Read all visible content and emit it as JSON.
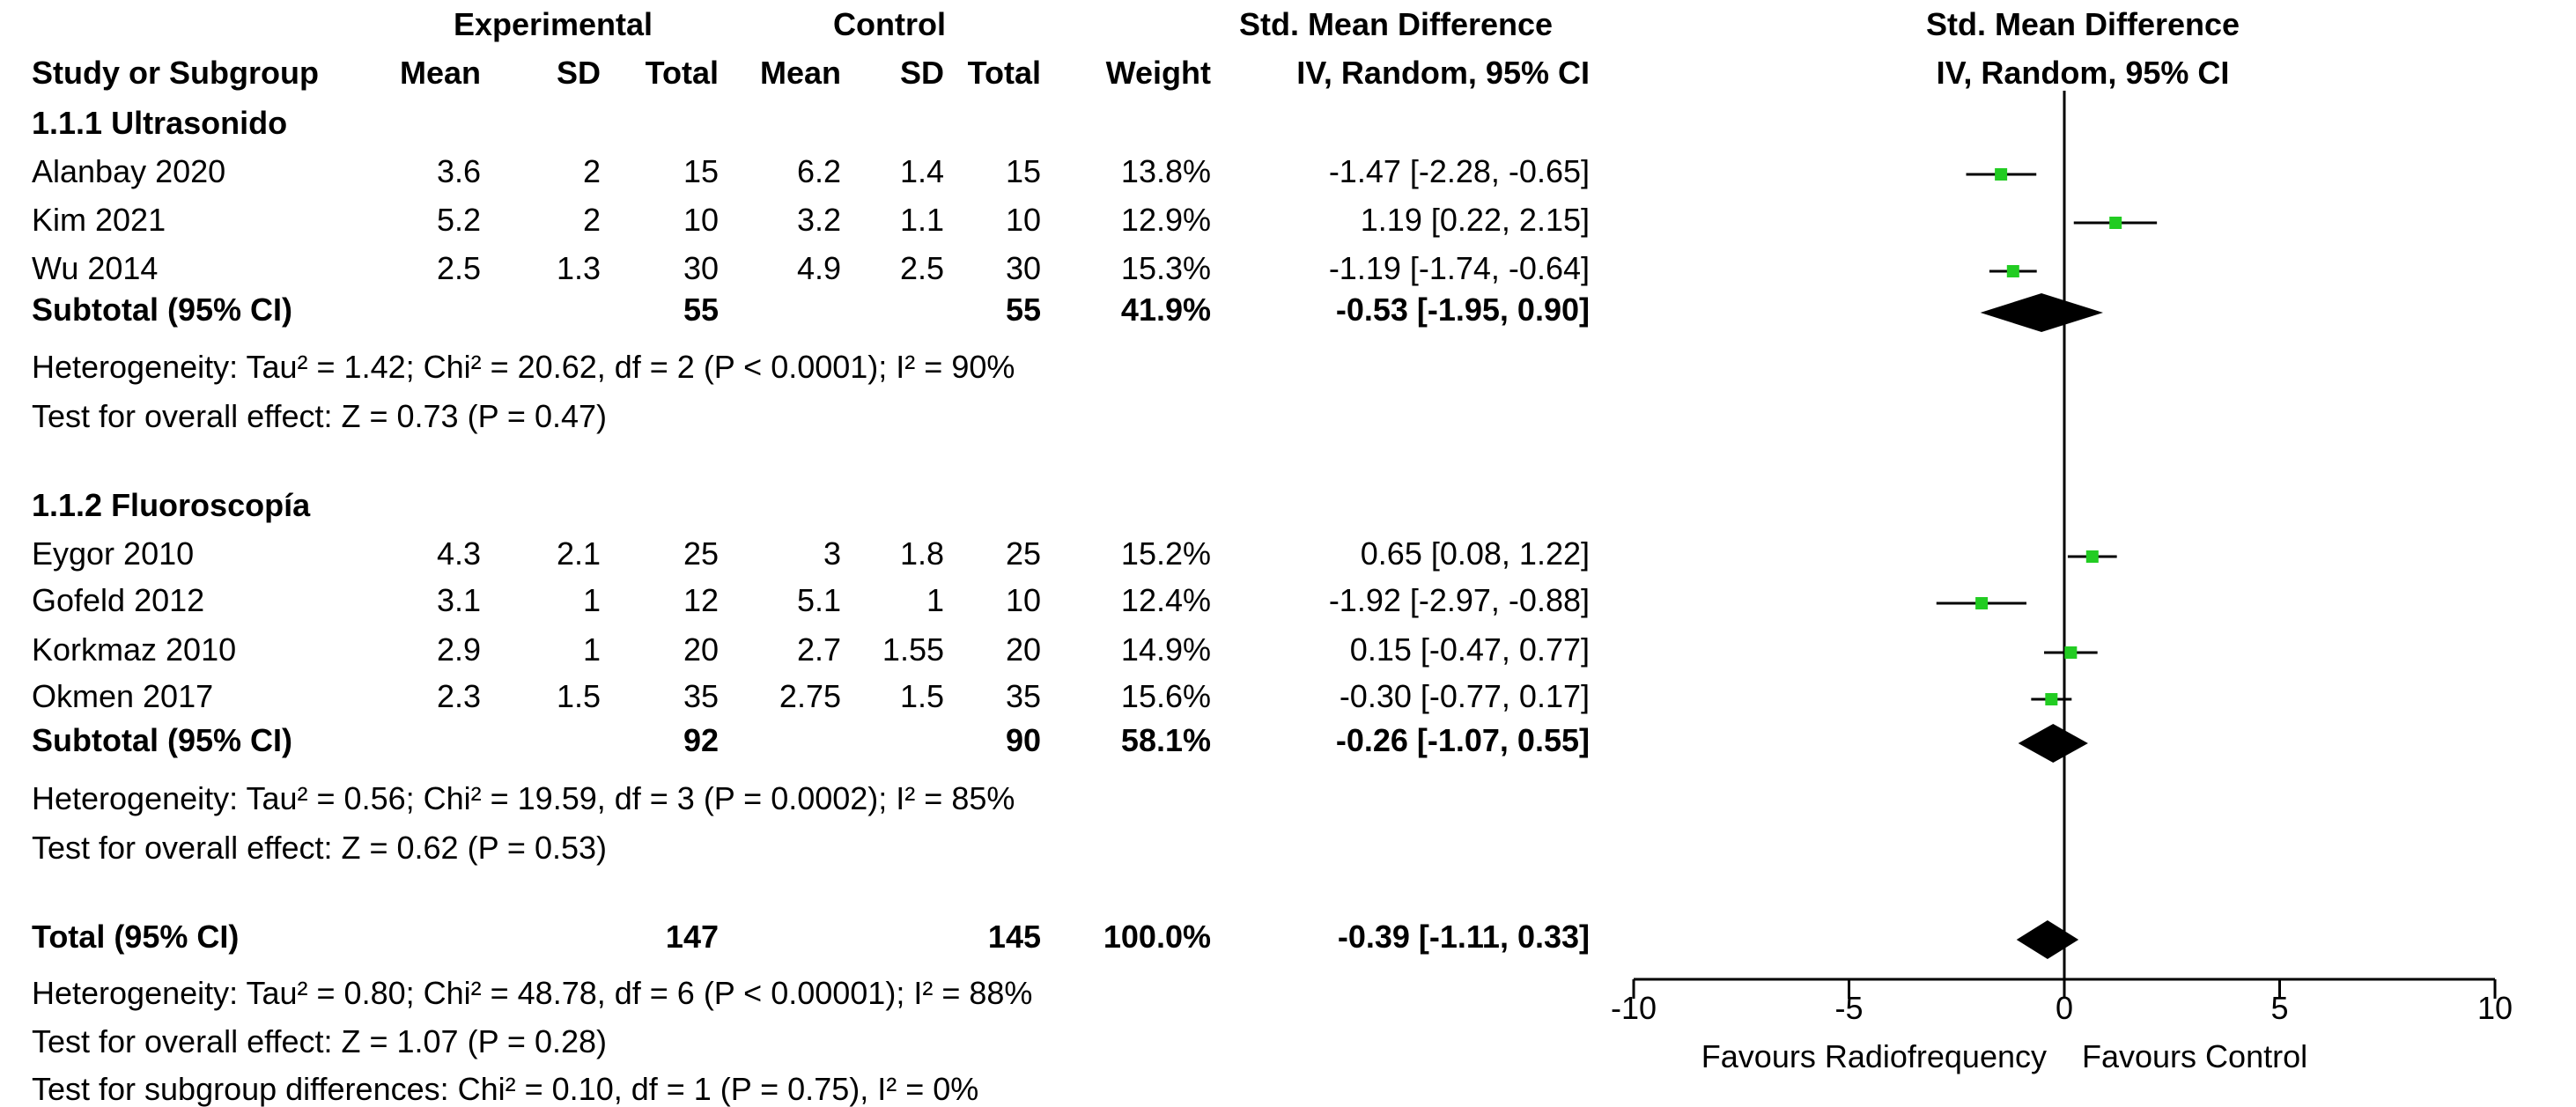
{
  "header": {
    "experimental": "Experimental",
    "control": "Control",
    "smd_title": "Std. Mean Difference",
    "study_or_subgroup": "Study or Subgroup",
    "mean": "Mean",
    "sd": "SD",
    "total": "Total",
    "weight": "Weight",
    "method": "IV, Random, 95% CI",
    "plot_title": "Std. Mean Difference",
    "plot_method": "IV, Random, 95% CI"
  },
  "groups": [
    {
      "title": "1.1.1 Ultrasonido",
      "studies": [
        {
          "name": "Alanbay 2020",
          "exp_mean": "3.6",
          "exp_sd": "2",
          "exp_total": "15",
          "ctl_mean": "6.2",
          "ctl_sd": "1.4",
          "ctl_total": "15",
          "weight": "13.8%",
          "ci": "-1.47 [-2.28, -0.65]"
        },
        {
          "name": "Kim 2021",
          "exp_mean": "5.2",
          "exp_sd": "2",
          "exp_total": "10",
          "ctl_mean": "3.2",
          "ctl_sd": "1.1",
          "ctl_total": "10",
          "weight": "12.9%",
          "ci": "1.19 [0.22, 2.15]"
        },
        {
          "name": "Wu 2014",
          "exp_mean": "2.5",
          "exp_sd": "1.3",
          "exp_total": "30",
          "ctl_mean": "4.9",
          "ctl_sd": "2.5",
          "ctl_total": "30",
          "weight": "15.3%",
          "ci": "-1.19 [-1.74, -0.64]"
        }
      ],
      "subtotal": {
        "label": "Subtotal (95% CI)",
        "exp_total": "55",
        "ctl_total": "55",
        "weight": "41.9%",
        "ci": "-0.53 [-1.95, 0.90]"
      },
      "heterogeneity": "Heterogeneity: Tau² = 1.42; Chi² = 20.62, df = 2 (P < 0.0001); I² = 90%",
      "overall": "Test for overall effect: Z = 0.73 (P = 0.47)"
    },
    {
      "title": "1.1.2 Fluoroscopía",
      "studies": [
        {
          "name": "Eygor 2010",
          "exp_mean": "4.3",
          "exp_sd": "2.1",
          "exp_total": "25",
          "ctl_mean": "3",
          "ctl_sd": "1.8",
          "ctl_total": "25",
          "weight": "15.2%",
          "ci": "0.65 [0.08, 1.22]"
        },
        {
          "name": "Gofeld 2012",
          "exp_mean": "3.1",
          "exp_sd": "1",
          "exp_total": "12",
          "ctl_mean": "5.1",
          "ctl_sd": "1",
          "ctl_total": "10",
          "weight": "12.4%",
          "ci": "-1.92 [-2.97, -0.88]"
        },
        {
          "name": "Korkmaz 2010",
          "exp_mean": "2.9",
          "exp_sd": "1",
          "exp_total": "20",
          "ctl_mean": "2.7",
          "ctl_sd": "1.55",
          "ctl_total": "20",
          "weight": "14.9%",
          "ci": "0.15 [-0.47, 0.77]"
        },
        {
          "name": "Okmen 2017",
          "exp_mean": "2.3",
          "exp_sd": "1.5",
          "exp_total": "35",
          "ctl_mean": "2.75",
          "ctl_sd": "1.5",
          "ctl_total": "35",
          "weight": "15.6%",
          "ci": "-0.30 [-0.77, 0.17]"
        }
      ],
      "subtotal": {
        "label": "Subtotal (95% CI)",
        "exp_total": "92",
        "ctl_total": "90",
        "weight": "58.1%",
        "ci": "-0.26 [-1.07, 0.55]"
      },
      "heterogeneity": "Heterogeneity: Tau² = 0.56; Chi² = 19.59, df = 3 (P = 0.0002); I² = 85%",
      "overall": "Test for overall effect: Z = 0.62 (P = 0.53)"
    }
  ],
  "total": {
    "label": "Total (95% CI)",
    "exp_total": "147",
    "ctl_total": "145",
    "weight": "100.0%",
    "ci": "-0.39 [-1.11, 0.33]",
    "heterogeneity": "Heterogeneity: Tau² = 0.80; Chi² = 48.78, df = 6 (P < 0.00001); I² = 88%",
    "overall": "Test for overall effect: Z = 1.07 (P = 0.28)",
    "subgroup_diff": "Test for subgroup differences: Chi² = 0.10, df = 1 (P = 0.75), I² = 0%"
  },
  "chart_data": {
    "type": "forest",
    "xlim": [
      -10,
      10
    ],
    "ticks": [
      -10,
      -5,
      0,
      5,
      10
    ],
    "tick_labels": [
      "-10",
      "-5",
      "0",
      "5",
      "10"
    ],
    "favours_left": "Favours Radiofrequency",
    "favours_right": "Favours Control",
    "colors": {
      "square": "#22cc22",
      "diamond": "#000000",
      "line": "#000000"
    },
    "studies": [
      {
        "name": "Alanbay 2020",
        "est": -1.47,
        "lo": -2.28,
        "hi": -0.65
      },
      {
        "name": "Kim 2021",
        "est": 1.19,
        "lo": 0.22,
        "hi": 2.15
      },
      {
        "name": "Wu 2014",
        "est": -1.19,
        "lo": -1.74,
        "hi": -0.64
      },
      {
        "name": "Eygor 2010",
        "est": 0.65,
        "lo": 0.08,
        "hi": 1.22
      },
      {
        "name": "Gofeld 2012",
        "est": -1.92,
        "lo": -2.97,
        "hi": -0.88
      },
      {
        "name": "Korkmaz 2010",
        "est": 0.15,
        "lo": -0.47,
        "hi": 0.77
      },
      {
        "name": "Okmen 2017",
        "est": -0.3,
        "lo": -0.77,
        "hi": 0.17
      }
    ],
    "diamonds": [
      {
        "name": "Subtotal 1.1.1",
        "est": -0.53,
        "lo": -1.95,
        "hi": 0.9
      },
      {
        "name": "Subtotal 1.1.2",
        "est": -0.26,
        "lo": -1.07,
        "hi": 0.55
      },
      {
        "name": "Total",
        "est": -0.39,
        "lo": -1.11,
        "hi": 0.33
      }
    ]
  }
}
